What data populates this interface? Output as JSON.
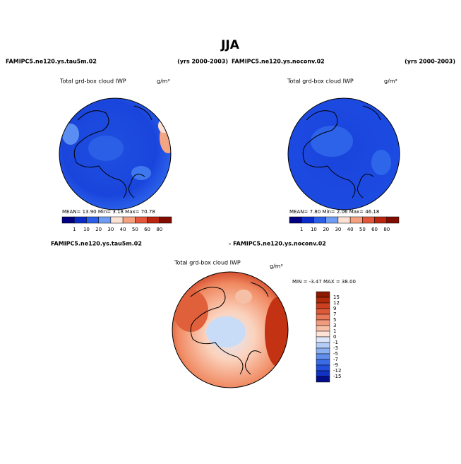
{
  "title": "JJA",
  "header": [
    {
      "case": "FAMIPC5.ne120.ys.tau5m.02",
      "years": "(yrs 2000-2003)"
    },
    {
      "case": "FAMIPC5.ne120.ys.noconv.02",
      "years": "(yrs 2000-2003)"
    }
  ],
  "panels": [
    {
      "title": "Total grd-box cloud IWP",
      "units": "g/m²",
      "stats": "MEAN=  13.90  Min=  3.18  Max=  70.78",
      "colorbar": {
        "labels": [
          1,
          10,
          20,
          30,
          40,
          50,
          60,
          80
        ]
      }
    },
    {
      "title": "Total grd-box cloud IWP",
      "units": "g/m²",
      "stats": "MEAN=  7.80  Min=  2.06  Max=  46.18",
      "colorbar": {
        "labels": [
          1,
          10,
          20,
          30,
          40,
          50,
          60,
          80
        ]
      }
    }
  ],
  "difference": {
    "case_a": "FAMIPC5.ne120.ys.tau5m.02",
    "case_b": "- FAMIPC5.ne120.ys.noconv.02",
    "title": "Total grd-box cloud IWP",
    "units": "g/m²",
    "stats": "MIN =  -3.47 MAX =  38.00",
    "colorbar": {
      "labels": [
        15,
        12,
        9,
        7,
        5,
        3,
        1,
        0,
        -1,
        -3,
        -5,
        -7,
        -9,
        -12,
        -15
      ]
    }
  }
}
